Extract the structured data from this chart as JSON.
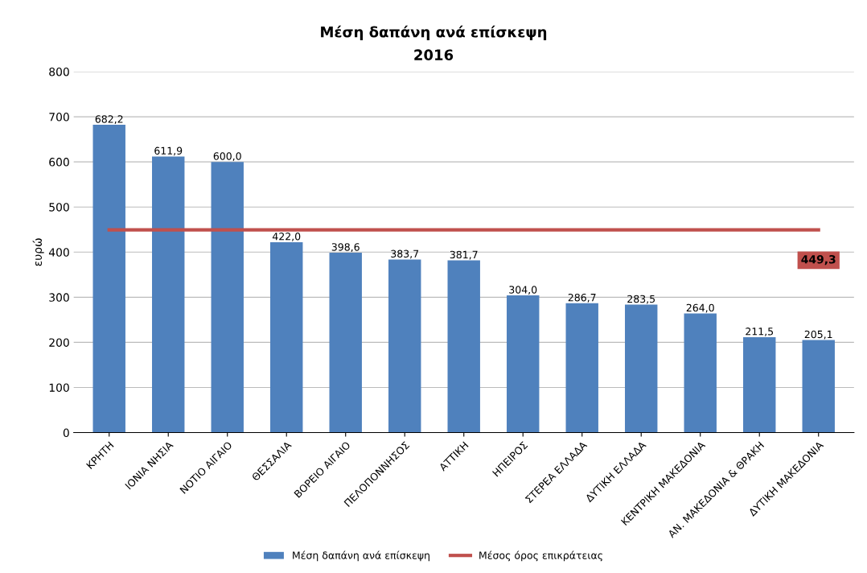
{
  "chart_data": {
    "type": "bar",
    "title": "Μέση δαπάνη ανά επίσκεψη",
    "subtitle": "2016",
    "ylabel": "ευρώ",
    "categories": [
      "ΚΡΗΤΗ",
      "ΙΟΝΙΑ ΝΗΣΙΑ",
      "ΝΟΤΙΟ ΑΙΓΑΙΟ",
      "ΘΕΣΣΑΛΙΑ",
      "ΒΟΡΕΙΟ ΑΙΓΑΙΟ",
      "ΠΕΛΟΠΟΝΝΗΣΟΣ",
      "ΑΤΤΙΚΗ",
      "ΗΠΕΙΡΟΣ",
      "ΣΤΕΡΕΑ ΕΛΛΑΔΑ",
      "ΔΥΤΙΚΗ ΕΛΛΑΔΑ",
      "ΚΕΝΤΡΙΚΗ ΜΑΚΕΔΟΝΙΑ",
      "ΑΝ. ΜΑΚΕΔΟΝΙΑ & ΘΡΑΚΗ",
      "ΔΥΤΙΚΗ ΜΑΚΕΔΟΝΙΑ"
    ],
    "series": [
      {
        "name": "Μέση δαπάνη ανά επίσκεψη",
        "color": "#4f81bd",
        "values": [
          682.2,
          611.9,
          600.0,
          422.0,
          398.6,
          383.7,
          381.7,
          304.0,
          286.7,
          283.5,
          264.0,
          211.5,
          205.1
        ],
        "value_labels": [
          "682,2",
          "611,9",
          "600,0",
          "422,0",
          "398,6",
          "383,7",
          "381,7",
          "304,0",
          "286,7",
          "283,5",
          "264,0",
          "211,5",
          "205,1"
        ]
      },
      {
        "name": "Μέσος όρος επικράτειας",
        "type": "line",
        "color": "#c0504d",
        "values": [
          449.3,
          449.3,
          449.3,
          449.3,
          449.3,
          449.3,
          449.3,
          449.3,
          449.3,
          449.3,
          449.3,
          449.3,
          449.3
        ],
        "value_labels": [
          null,
          null,
          null,
          null,
          null,
          null,
          null,
          null,
          null,
          null,
          null,
          null,
          "449,3"
        ]
      }
    ],
    "ylim": [
      0,
      800
    ],
    "yticks": [
      0,
      100,
      200,
      300,
      400,
      500,
      600,
      700,
      800
    ],
    "grid": "y",
    "legend": "bottom"
  }
}
